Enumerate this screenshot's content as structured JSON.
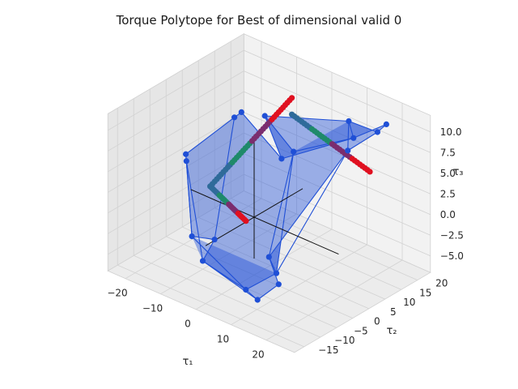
{
  "chart_data": {
    "type": "scatter",
    "projection": "3d",
    "title": "Torque Polytope for Best of dimensional valid 0",
    "xlabel": "τ₁",
    "ylabel": "τ₂",
    "zlabel": "τ₃",
    "xlim": [
      -25,
      28
    ],
    "ylim": [
      -18,
      24
    ],
    "zlim": [
      -7,
      12
    ],
    "xticks": [
      -20,
      -10,
      0,
      10,
      20
    ],
    "yticks": [
      -15,
      -10,
      -5,
      0,
      5,
      10,
      15,
      20
    ],
    "zticks": [
      -5.0,
      -2.5,
      0.0,
      2.5,
      5.0,
      7.5,
      10.0
    ],
    "xtick_labels": [
      "−20",
      "−10",
      "0",
      "10",
      "20"
    ],
    "ytick_labels": [
      "−15",
      "−10",
      "−5",
      "0",
      "5",
      "10",
      "15",
      "20"
    ],
    "ztick_labels": [
      "−5.0",
      "−2.5",
      "0.0",
      "2.5",
      "5.0",
      "7.5",
      "10.0"
    ],
    "grid": true,
    "polytope_color": "#1f4fd6",
    "vertices": [
      [
        -24,
        20,
        3
      ],
      [
        -22,
        20,
        4
      ],
      [
        -24,
        5,
        2
      ],
      [
        -22,
        3,
        2
      ],
      [
        -10,
        -5,
        -6
      ],
      [
        -14,
        3,
        -6
      ],
      [
        5,
        -8,
        -6
      ],
      [
        12,
        -12,
        -5
      ],
      [
        18,
        -12,
        -2
      ],
      [
        -6,
        15,
        2.5
      ],
      [
        8,
        22,
        6
      ],
      [
        24,
        12,
        12
      ],
      [
        22,
        5,
        11
      ],
      [
        21,
        18,
        11
      ],
      [
        -14,
        -4,
        -4
      ],
      [
        10,
        -4,
        -4
      ],
      [
        18,
        -15,
        2
      ],
      [
        -8,
        12,
        8
      ],
      [
        14,
        14,
        11
      ],
      [
        2,
        10,
        6
      ]
    ],
    "edges": [
      [
        0,
        1
      ],
      [
        1,
        9
      ],
      [
        9,
        10
      ],
      [
        10,
        13
      ],
      [
        13,
        11
      ],
      [
        11,
        12
      ],
      [
        12,
        16
      ],
      [
        16,
        8
      ],
      [
        8,
        7
      ],
      [
        7,
        6
      ],
      [
        6,
        4
      ],
      [
        4,
        5
      ],
      [
        5,
        0
      ],
      [
        0,
        2
      ],
      [
        2,
        3
      ],
      [
        3,
        4
      ],
      [
        3,
        14
      ],
      [
        14,
        5
      ],
      [
        6,
        15
      ],
      [
        15,
        16
      ],
      [
        9,
        17
      ],
      [
        17,
        18
      ],
      [
        18,
        11
      ],
      [
        17,
        19
      ],
      [
        19,
        15
      ],
      [
        15,
        12
      ],
      [
        18,
        12
      ],
      [
        10,
        18
      ],
      [
        19,
        10
      ],
      [
        4,
        7
      ],
      [
        14,
        6
      ],
      [
        19,
        16
      ],
      [
        2,
        14
      ]
    ],
    "faces": [
      [
        0,
        1,
        9,
        17,
        19,
        15,
        6,
        4,
        5
      ],
      [
        9,
        10,
        13,
        11,
        18,
        17
      ],
      [
        5,
        14,
        3,
        2,
        0
      ],
      [
        4,
        6,
        7,
        8,
        16,
        15,
        14
      ],
      [
        15,
        16,
        12,
        11,
        18,
        19
      ]
    ],
    "curve": {
      "description": "trajectory of points",
      "colors": [
        "#2f6b9a",
        "#1f8a6a",
        "#7b2d6e",
        "#e01020"
      ]
    },
    "reference_axes": {
      "x": [
        [
          -18,
          0,
          0
        ],
        [
          24,
          0,
          0
        ]
      ],
      "y": [
        [
          0,
          -15,
          0
        ],
        [
          0,
          15,
          0
        ]
      ],
      "z": [
        [
          0,
          0,
          -5
        ],
        [
          0,
          0,
          10
        ]
      ]
    }
  }
}
